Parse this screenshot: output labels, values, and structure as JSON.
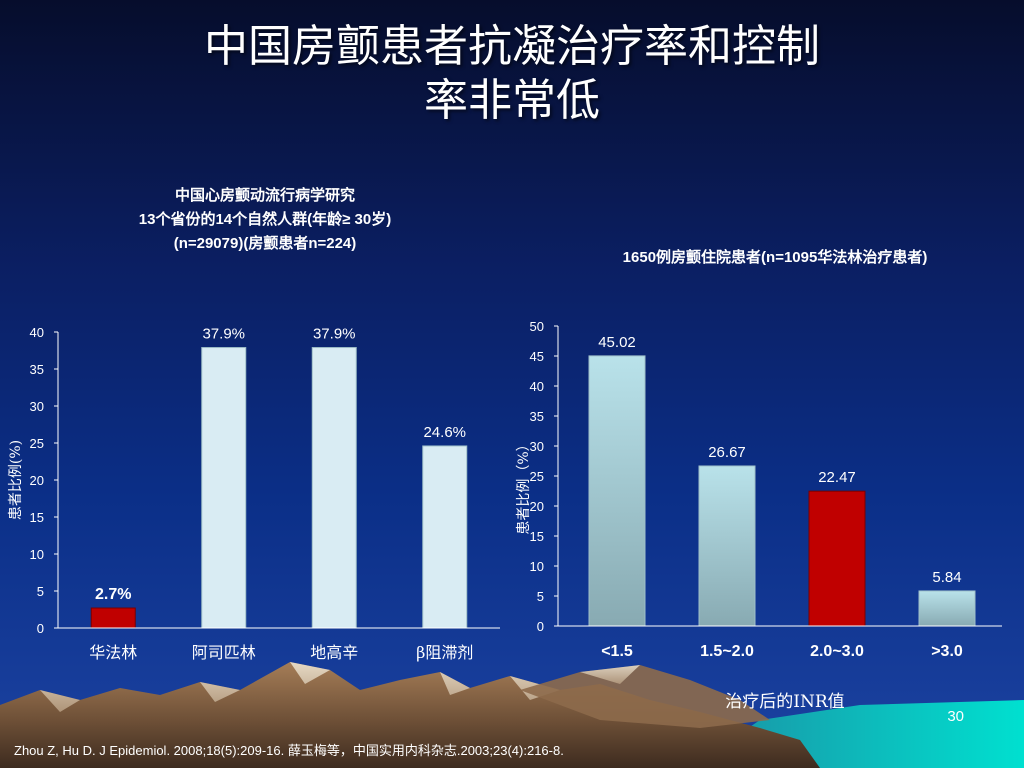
{
  "slide": {
    "title_line1": "中国房颤患者抗凝治疗率和控制",
    "title_line2": "率非常低",
    "page_number": "30",
    "citation": "Zhou Z, Hu D. J Epidemiol. 2008;18(5):209-16.  薛玉梅等，中国实用内科杂志.2003;23(4):216-8."
  },
  "left_study": {
    "line1": "中国心房颤动流行病学研究",
    "line2": "13个省份的14个自然人群(年龄≥ 30岁)",
    "line3": "(n=29079)(房颤患者n=224)"
  },
  "right_study": {
    "line1": "1650例房颤住院患者(n=1095华法林治疗患者)"
  },
  "chart_data": [
    {
      "type": "bar",
      "categories": [
        "华法林",
        "阿司匹林",
        "地高辛",
        "β阻滞剂"
      ],
      "values": [
        2.7,
        37.9,
        37.9,
        24.6
      ],
      "data_labels": [
        "2.7%",
        "37.9%",
        "37.9%",
        "24.6%"
      ],
      "ylabel": "患者比例(%)",
      "xlabel": "",
      "ylim": [
        0,
        40
      ],
      "yticks": [
        0,
        5,
        10,
        15,
        20,
        25,
        30,
        35,
        40
      ],
      "colors": [
        "#c00000",
        "#d9ecf3",
        "#d9ecf3",
        "#d9ecf3"
      ]
    },
    {
      "type": "bar",
      "categories": [
        "<1.5",
        "1.5~2.0",
        "2.0~3.0",
        ">3.0"
      ],
      "values": [
        45.02,
        26.67,
        22.47,
        5.84
      ],
      "data_labels": [
        "45.02",
        "26.67",
        "22.47",
        "5.84"
      ],
      "ylabel": "患者比例（%）",
      "xlabel": "治疗后的INR值",
      "ylim": [
        0,
        50
      ],
      "yticks": [
        0,
        5,
        10,
        15,
        20,
        25,
        30,
        35,
        40,
        45,
        50
      ],
      "colors": [
        "#a9d6de",
        "#a9d6de",
        "#c00000",
        "#a9d6de"
      ]
    }
  ]
}
